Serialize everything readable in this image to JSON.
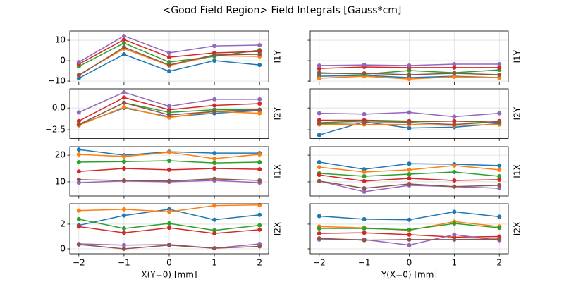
{
  "title": "<Good Field Region> Field Integrals [Gauss*cm]",
  "chart_data": [
    {
      "type": "line",
      "ylabel": "I1Y",
      "x": [
        -2,
        -1,
        0,
        1,
        2
      ],
      "ylim": [
        -10.5,
        14.5
      ],
      "yticks": [
        {
          "value": -10,
          "label": "−10"
        },
        0,
        10
      ],
      "grid": true,
      "series": [
        {
          "color": "#1f77b4",
          "values": [
            -8.6,
            3.1,
            -5.2,
            0,
            -2.1
          ]
        },
        {
          "color": "#ff7f0e",
          "values": [
            -6.9,
            5.9,
            -2.4,
            2.4,
            2.1
          ]
        },
        {
          "color": "#2ca02c",
          "values": [
            -2.8,
            8.6,
            -0.7,
            2.1,
            5.2
          ]
        },
        {
          "color": "#d62728",
          "values": [
            -1.7,
            10.3,
            1.7,
            3.8,
            4.5
          ]
        },
        {
          "color": "#9467bd",
          "values": [
            -0.7,
            12.1,
            3.8,
            7.2,
            7.6
          ]
        },
        {
          "color": "#8c564b",
          "values": [
            -7.2,
            6.6,
            -2.1,
            2.8,
            3.1
          ]
        }
      ]
    },
    {
      "type": "line",
      "ylabel": "I1Y",
      "x": [
        -2,
        -1,
        0,
        1,
        2
      ],
      "grid": true,
      "series": [
        {
          "color": "#1f77b4",
          "values": [
            -7.6,
            -7.2,
            -8.3,
            -7.6,
            -8.3
          ]
        },
        {
          "color": "#ff7f0e",
          "values": [
            -8.6,
            -7.6,
            -9.0,
            -7.9,
            -8.3
          ]
        },
        {
          "color": "#2ca02c",
          "values": [
            -5.9,
            -6.6,
            -4.8,
            -5.9,
            -4.5
          ]
        },
        {
          "color": "#d62728",
          "values": [
            -3.8,
            -3.1,
            -3.4,
            -3.4,
            -3.4
          ]
        },
        {
          "color": "#9467bd",
          "values": [
            -2.4,
            -2.1,
            -2.4,
            -1.7,
            -1.7
          ]
        },
        {
          "color": "#8c564b",
          "values": [
            -6.2,
            -6.2,
            -6.9,
            -6.2,
            -6.9
          ]
        }
      ]
    },
    {
      "type": "line",
      "ylabel": "I2Y",
      "x": [
        -2,
        -1,
        0,
        1,
        2
      ],
      "ylim": [
        -3.5,
        2.2
      ],
      "yticks": [
        {
          "value": -2.5,
          "label": "−2.5"
        },
        {
          "value": 0,
          "label": "0.0"
        }
      ],
      "grid": true,
      "series": [
        {
          "color": "#1f77b4",
          "values": [
            -1.9,
            0,
            -1.0,
            -0.6,
            -0.3
          ]
        },
        {
          "color": "#ff7f0e",
          "values": [
            -2.0,
            0.1,
            -1.1,
            -0.4,
            -0.6
          ]
        },
        {
          "color": "#2ca02c",
          "values": [
            -1.9,
            0.6,
            -0.5,
            -0.2,
            -0.2
          ]
        },
        {
          "color": "#d62728",
          "values": [
            -1.5,
            1.2,
            -0.2,
            0.3,
            0.5
          ]
        },
        {
          "color": "#9467bd",
          "values": [
            -0.5,
            1.8,
            0.2,
            1.0,
            1.0
          ]
        },
        {
          "color": "#8c564b",
          "values": [
            -1.9,
            0.6,
            -0.8,
            -0.4,
            -0.2
          ]
        }
      ]
    },
    {
      "type": "line",
      "ylabel": "I2Y",
      "x": [
        -2,
        -1,
        0,
        1,
        2
      ],
      "grid": true,
      "series": [
        {
          "color": "#1f77b4",
          "values": [
            -3.1,
            -1.6,
            -2.3,
            -2.2,
            -1.8
          ]
        },
        {
          "color": "#ff7f0e",
          "values": [
            -1.9,
            -1.9,
            -1.9,
            -2.0,
            -1.9
          ]
        },
        {
          "color": "#2ca02c",
          "values": [
            -1.7,
            -1.5,
            -1.6,
            -1.5,
            -1.7
          ]
        },
        {
          "color": "#d62728",
          "values": [
            -1.4,
            -1.4,
            -1.5,
            -1.5,
            -1.5
          ]
        },
        {
          "color": "#9467bd",
          "values": [
            -0.6,
            -0.7,
            -0.5,
            -1.0,
            -0.6
          ]
        },
        {
          "color": "#8c564b",
          "values": [
            -1.8,
            -1.7,
            -1.7,
            -1.9,
            -1.6
          ]
        }
      ]
    },
    {
      "type": "line",
      "ylabel": "I1X",
      "x": [
        -2,
        -1,
        0,
        1,
        2
      ],
      "ylim": [
        4.7,
        23.2
      ],
      "yticks": [
        10,
        20
      ],
      "grid": true,
      "series": [
        {
          "color": "#1f77b4",
          "values": [
            22.1,
            20,
            21.3,
            20.8,
            20.8
          ]
        },
        {
          "color": "#ff7f0e",
          "values": [
            20.3,
            19.5,
            21.1,
            18.7,
            20.3
          ]
        },
        {
          "color": "#2ca02c",
          "values": [
            17.4,
            17.6,
            17.9,
            17.1,
            17.4
          ]
        },
        {
          "color": "#d62728",
          "values": [
            13.9,
            15,
            14.5,
            15,
            14.7
          ]
        },
        {
          "color": "#9467bd",
          "values": [
            9.7,
            10.3,
            10,
            10.5,
            9.7
          ]
        },
        {
          "color": "#8c564b",
          "values": [
            10.8,
            10.5,
            10.3,
            11.1,
            10.5
          ]
        }
      ]
    },
    {
      "type": "line",
      "ylabel": "I1X",
      "x": [
        -2,
        -1,
        0,
        1,
        2
      ],
      "grid": true,
      "series": [
        {
          "color": "#1f77b4",
          "values": [
            17.4,
            14.7,
            16.8,
            16.6,
            16.1
          ]
        },
        {
          "color": "#ff7f0e",
          "values": [
            15.5,
            13.7,
            14.5,
            16.1,
            14.5
          ]
        },
        {
          "color": "#2ca02c",
          "values": [
            13.2,
            12.1,
            12.9,
            13.7,
            12.1
          ]
        },
        {
          "color": "#d62728",
          "values": [
            12.6,
            10.3,
            11.3,
            10.5,
            10.8
          ]
        },
        {
          "color": "#9467bd",
          "values": [
            10.3,
            6.3,
            8.7,
            8.2,
            7.6
          ]
        },
        {
          "color": "#8c564b",
          "values": [
            10.3,
            7.6,
            9.2,
            8.2,
            8.7
          ]
        }
      ]
    },
    {
      "type": "line",
      "ylabel": "I2X",
      "xlabel": "X(Y=0) [mm]",
      "x": [
        -2,
        -1,
        0,
        1,
        2
      ],
      "xlim": [
        -2.2,
        2.2
      ],
      "xticks": [
        {
          "value": -2,
          "label": "−2"
        },
        {
          "value": -1,
          "label": "−1"
        },
        0,
        1,
        2
      ],
      "ylim": [
        -0.4,
        3.65
      ],
      "yticks": [
        0,
        2
      ],
      "grid": true,
      "series": [
        {
          "color": "#1f77b4",
          "values": [
            1.9,
            2.7,
            3.2,
            2.35,
            2.75
          ]
        },
        {
          "color": "#ff7f0e",
          "values": [
            3.1,
            3.2,
            3.0,
            3.5,
            3.55
          ]
        },
        {
          "color": "#2ca02c",
          "values": [
            2.4,
            1.65,
            2.05,
            1.5,
            1.9
          ]
        },
        {
          "color": "#d62728",
          "values": [
            1.8,
            1.3,
            1.7,
            1.25,
            1.55
          ]
        },
        {
          "color": "#9467bd",
          "values": [
            0.4,
            0.3,
            0.35,
            0.05,
            0.4
          ]
        },
        {
          "color": "#8c564b",
          "values": [
            0.35,
            0,
            0.3,
            0.05,
            0.2
          ]
        }
      ]
    },
    {
      "type": "line",
      "ylabel": "I2X",
      "xlabel": "Y(X=0) [mm]",
      "x": [
        -2,
        -1,
        0,
        1,
        2
      ],
      "xlim": [
        -2.2,
        2.2
      ],
      "xticks": [
        {
          "value": -2,
          "label": "−2"
        },
        {
          "value": -1,
          "label": "−1"
        },
        0,
        1,
        2
      ],
      "grid": true,
      "series": [
        {
          "color": "#1f77b4",
          "values": [
            2.65,
            2.4,
            2.35,
            3.0,
            2.6
          ]
        },
        {
          "color": "#ff7f0e",
          "values": [
            1.8,
            1.7,
            1.5,
            2.2,
            1.8
          ]
        },
        {
          "color": "#2ca02c",
          "values": [
            1.65,
            1.65,
            1.55,
            2.05,
            1.7
          ]
        },
        {
          "color": "#d62728",
          "values": [
            1.25,
            1.3,
            1.15,
            0.95,
            1.0
          ]
        },
        {
          "color": "#9467bd",
          "values": [
            0.75,
            0.75,
            0.3,
            1.15,
            0.7
          ]
        },
        {
          "color": "#8c564b",
          "values": [
            0.85,
            0.7,
            0.75,
            0.75,
            0.8
          ]
        }
      ]
    }
  ]
}
